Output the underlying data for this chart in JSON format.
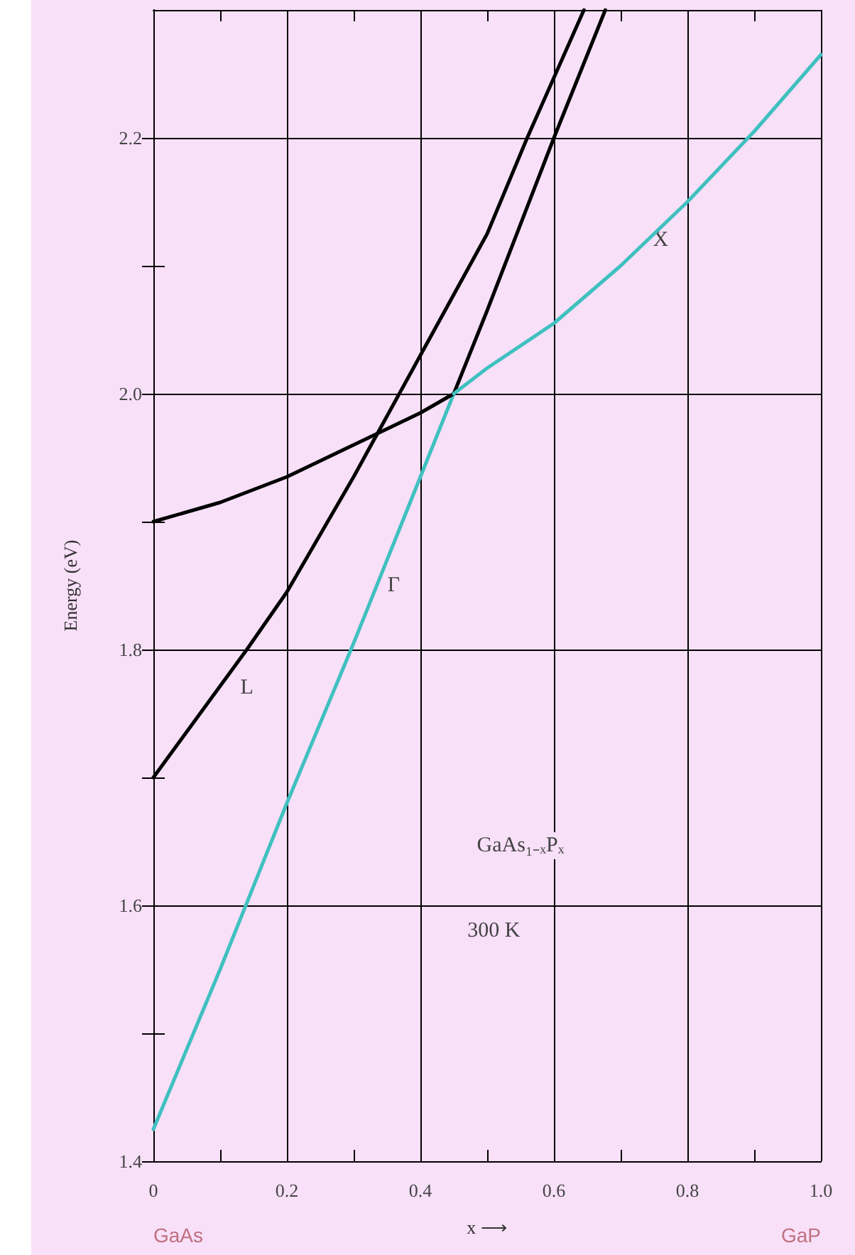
{
  "chart_data": {
    "type": "line",
    "xlabel": "x ⟶",
    "ylabel": "Energy (eV)",
    "xlim": [
      0,
      1
    ],
    "ylim": [
      1.4,
      2.3
    ],
    "xticks": [
      0,
      {
        "value": 0.1,
        "label": null
      },
      0.2,
      {
        "value": 0.3,
        "label": null
      },
      0.4,
      {
        "value": 0.5,
        "label": null
      },
      0.6,
      {
        "value": 0.7,
        "label": null
      },
      0.8,
      {
        "value": 0.9,
        "label": null
      },
      {
        "value": 1,
        "label": "1.0"
      }
    ],
    "yticks": [
      1.4,
      {
        "value": 1.5,
        "label": null
      },
      1.6,
      {
        "value": 1.7,
        "label": null
      },
      1.8,
      {
        "value": 1.9,
        "label": null
      },
      {
        "value": 2,
        "label": "2.0"
      },
      {
        "value": 2.1,
        "label": null
      },
      2.2
    ],
    "grid": true,
    "marker": "none",
    "line_style": "solid",
    "series": [
      {
        "color": "#40c0c0",
        "x": [
          0,
          0.1,
          0.2,
          0.3,
          0.4,
          0.45
        ],
        "values": [
          1.425,
          1.55,
          1.68,
          1.805,
          1.935,
          2.0
        ]
      },
      {
        "color": "#000000",
        "x": [
          0.45,
          0.5,
          0.6,
          0.677
        ],
        "values": [
          2.0,
          2.065,
          2.2,
          2.3
        ]
      },
      {
        "color": "#000000",
        "x": [
          0,
          0.1,
          0.2,
          0.3,
          0.4,
          0.45
        ],
        "values": [
          1.9,
          1.915,
          1.935,
          1.96,
          1.985,
          2.0
        ]
      },
      {
        "color": "#40c0c0",
        "x": [
          0.45,
          0.5,
          0.6,
          0.7,
          0.8,
          0.9,
          1.0
        ],
        "values": [
          2.0,
          2.02,
          2.055,
          2.1,
          2.15,
          2.205,
          2.265
        ]
      },
      {
        "color": "#000000",
        "x": [
          0,
          0.14,
          0.2,
          0.3,
          0.4,
          0.5,
          0.56,
          0.645
        ],
        "values": [
          1.7,
          1.8,
          1.845,
          1.935,
          2.03,
          2.125,
          2.2,
          2.3
        ]
      }
    ],
    "annotations": [
      {
        "text": "L",
        "x": 0.14,
        "y": 1.77
      },
      {
        "text": "Γ",
        "x": 0.36,
        "y": 1.85
      },
      {
        "text": "X",
        "x": 0.76,
        "y": 2.12
      },
      "GaAs₁₋ₓPₓ",
      "300 K",
      "GaAs",
      "GaP"
    ]
  }
}
